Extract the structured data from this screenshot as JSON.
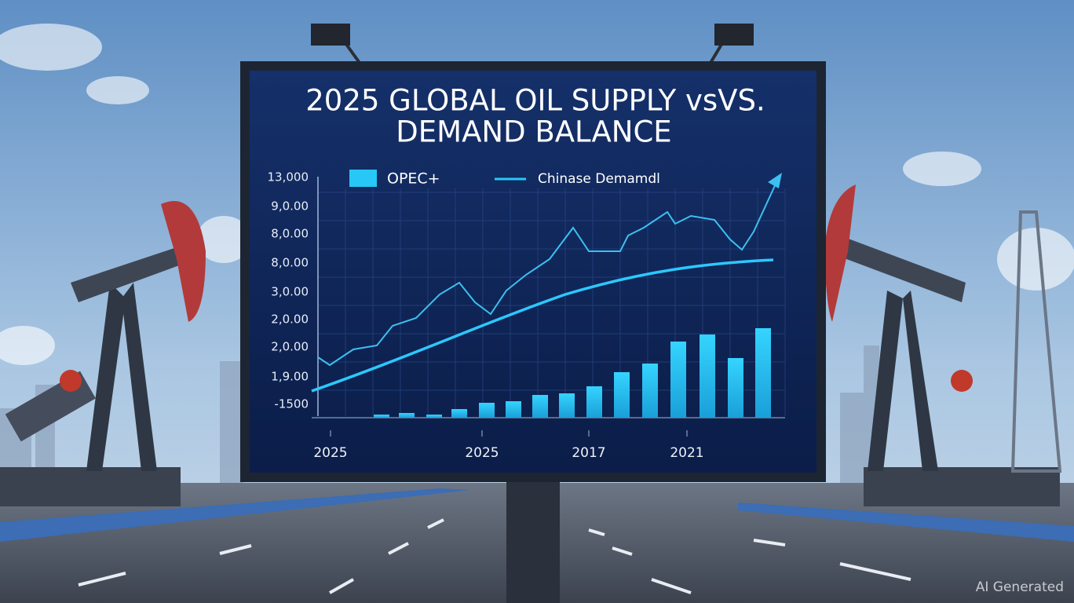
{
  "billboard": {
    "title_lines": [
      "2025 GLOBAL OIL SUPPLY vsVS.",
      "DEMAND BALANCE"
    ],
    "legend": [
      "OPEC+",
      "Chinase Demamdl"
    ],
    "y_labels": [
      "13,000",
      "9,0.00",
      "8,0.00",
      "8,0.00",
      "3,0.00",
      "2,0.00",
      "2,0.00",
      "1,9.00",
      "-1500"
    ],
    "x_labels": [
      "2025",
      "2025",
      "2017",
      "2021"
    ]
  },
  "watermark": "AI Generated"
}
